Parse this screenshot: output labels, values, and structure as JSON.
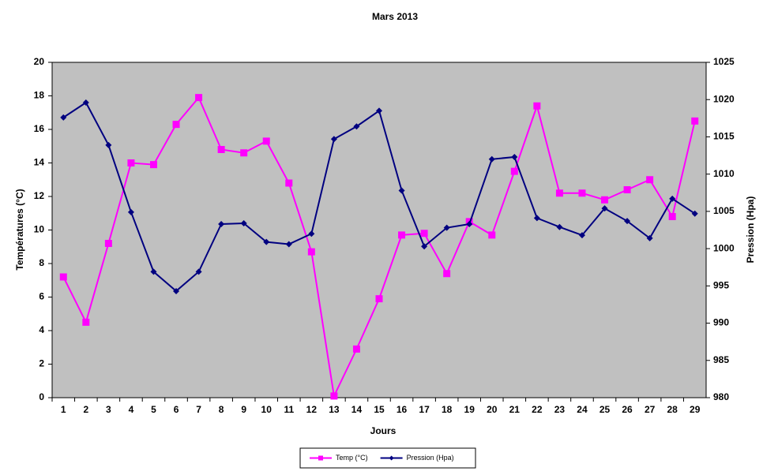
{
  "chart_data": {
    "type": "line",
    "title": "Mars 2013",
    "x_label": "Jours",
    "y_label": "Températures (°C)",
    "y2_label": "Pression (Hpa)",
    "categories": [
      "1",
      "2",
      "3",
      "4",
      "5",
      "6",
      "7",
      "8",
      "9",
      "10",
      "11",
      "12",
      "13",
      "14",
      "15",
      "16",
      "17",
      "18",
      "19",
      "20",
      "21",
      "22",
      "23",
      "24",
      "25",
      "26",
      "27",
      "28",
      "29"
    ],
    "series": [
      {
        "name": "Temp (°C)",
        "color": "#ff00ff",
        "marker": "square",
        "values": [
          7.2,
          4.5,
          9.2,
          14.0,
          13.9,
          16.3,
          17.9,
          14.8,
          14.6,
          15.3,
          12.8,
          8.7,
          0.1,
          2.9,
          5.9,
          9.7,
          9.8,
          7.4,
          10.5,
          9.7,
          13.5,
          17.4,
          12.2,
          12.2,
          11.8,
          12.4,
          13.0,
          10.8,
          16.5
        ]
      },
      {
        "name": "Pression (Hpa)",
        "color": "#000080",
        "marker": "diamond",
        "axis": "y2",
        "values": [
          1017.6,
          1019.6,
          1013.9,
          1004.9,
          996.9,
          994.3,
          996.9,
          1003.3,
          1003.4,
          1000.9,
          1000.6,
          1002.0,
          1014.7,
          1016.4,
          1018.5,
          1007.8,
          1000.3,
          1002.8,
          1003.3,
          1012.0,
          1012.3,
          1004.1,
          1002.9,
          1001.8,
          1005.4,
          1003.7,
          1001.4,
          1006.7,
          1004.7
        ]
      }
    ],
    "ylim": [
      0,
      20
    ],
    "yticks": [
      0,
      2,
      4,
      6,
      8,
      10,
      12,
      14,
      16,
      18,
      20
    ],
    "y2lim": [
      980,
      1025
    ],
    "y2ticks": [
      980,
      985,
      990,
      995,
      1000,
      1005,
      1010,
      1015,
      1020,
      1025
    ],
    "plot_background": "#c0c0c0",
    "grid": false,
    "legend": "bottom"
  }
}
